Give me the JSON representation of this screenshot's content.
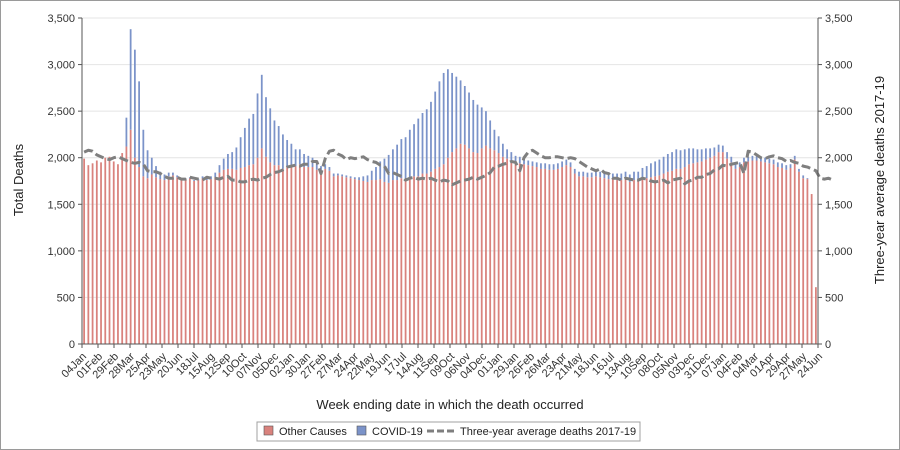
{
  "chart_data": {
    "type": "bar",
    "stacked": true,
    "xlabel": "Week ending date in which the death occurred",
    "ylabel": "Total Deaths",
    "y2label": "Three-year average deaths 2017-19",
    "ylim": [
      0,
      3500
    ],
    "yticks": [
      "0",
      "500",
      "1,000",
      "1,500",
      "2,000",
      "2,500",
      "3,000",
      "3,500"
    ],
    "ytick_values": [
      0,
      500,
      1000,
      1500,
      2000,
      2500,
      3000,
      3500
    ],
    "grid": true,
    "legend_position": "bottom-center",
    "x_tick_labels": [
      "04Jan",
      "01Feb",
      "29Feb",
      "28Mar",
      "25Apr",
      "23May",
      "20Jun",
      "18Jul",
      "15Aug",
      "12Sep",
      "10Oct",
      "07Nov",
      "05Dec",
      "02Jan",
      "30Jan",
      "27Feb",
      "27Mar",
      "24Apr",
      "22May",
      "19Jun",
      "17Jul",
      "14Aug",
      "11Sep",
      "09Oct",
      "06Nov",
      "04Dec",
      "01Jan",
      "29Jan",
      "26Feb",
      "26Mar",
      "23Apr",
      "21May",
      "18Jun",
      "16Jul",
      "13Aug",
      "10Sep",
      "08Oct",
      "05Nov",
      "03Dec",
      "31Dec",
      "07Jan",
      "04Feb",
      "04Mar",
      "01Apr",
      "29Apr",
      "27May",
      "24Jun"
    ],
    "series": [
      {
        "name": "Other Causes",
        "color": "#d9827d",
        "values": [
          1990,
          1920,
          1940,
          1970,
          1950,
          2000,
          2010,
          1960,
          1930,
          2050,
          2120,
          2300,
          2000,
          1900,
          1800,
          1780,
          1820,
          1790,
          1770,
          1760,
          1800,
          1810,
          1790,
          1760,
          1770,
          1780,
          1750,
          1760,
          1780,
          1760,
          1770,
          1790,
          1840,
          1870,
          1880,
          1880,
          1870,
          1890,
          1900,
          1920,
          1930,
          2000,
          2100,
          2010,
          1950,
          1920,
          1920,
          1880,
          1900,
          1920,
          1910,
          1930,
          1900,
          1900,
          1900,
          1870,
          1850,
          1880,
          1860,
          1800,
          1810,
          1800,
          1790,
          1780,
          1770,
          1760,
          1750,
          1740,
          1760,
          1760,
          1770,
          1740,
          1730,
          1760,
          1760,
          1780,
          1770,
          1780,
          1800,
          1800,
          1830,
          1830,
          1850,
          1880,
          1900,
          1930,
          2000,
          2060,
          2100,
          2150,
          2140,
          2100,
          2060,
          2050,
          2100,
          2130,
          2100,
          2080,
          2050,
          2010,
          1990,
          1970,
          1950,
          1940,
          1930,
          1920,
          1910,
          1900,
          1880,
          1880,
          1870,
          1870,
          1880,
          1900,
          1920,
          1900,
          1830,
          1800,
          1800,
          1790,
          1790,
          1800,
          1790,
          1780,
          1770,
          1770,
          1760,
          1760,
          1780,
          1740,
          1760,
          1750,
          1770,
          1780,
          1790,
          1800,
          1810,
          1830,
          1850,
          1860,
          1880,
          1880,
          1900,
          1930,
          1940,
          1950,
          1960,
          1980,
          2000,
          2020,
          2060,
          2060,
          1990,
          1950,
          1880,
          1900,
          1950,
          1960,
          1970,
          1970,
          1960,
          1950,
          1940,
          1930,
          1900,
          1890,
          1870,
          1890,
          1980,
          1850,
          1780,
          1770,
          1610,
          610
        ]
      },
      {
        "name": "COVID-19",
        "color": "#7b93c9",
        "values": [
          0,
          0,
          0,
          0,
          0,
          0,
          0,
          0,
          0,
          0,
          310,
          1080,
          1160,
          920,
          500,
          300,
          180,
          120,
          80,
          60,
          40,
          30,
          20,
          10,
          10,
          10,
          10,
          10,
          20,
          30,
          30,
          50,
          80,
          120,
          160,
          180,
          240,
          330,
          420,
          500,
          540,
          690,
          790,
          640,
          580,
          480,
          420,
          370,
          290,
          230,
          180,
          160,
          140,
          120,
          100,
          80,
          60,
          50,
          40,
          30,
          20,
          20,
          20,
          20,
          20,
          30,
          50,
          70,
          100,
          140,
          190,
          250,
          300,
          330,
          380,
          420,
          450,
          520,
          560,
          620,
          650,
          690,
          750,
          830,
          920,
          980,
          950,
          850,
          770,
          680,
          630,
          600,
          560,
          520,
          440,
          370,
          300,
          220,
          180,
          140,
          100,
          90,
          70,
          70,
          60,
          50,
          50,
          50,
          60,
          60,
          60,
          60,
          60,
          60,
          60,
          50,
          50,
          50,
          50,
          50,
          50,
          50,
          60,
          60,
          60,
          60,
          70,
          70,
          70,
          80,
          90,
          100,
          120,
          130,
          150,
          160,
          170,
          180,
          190,
          200,
          210,
          200,
          190,
          170,
          160,
          140,
          130,
          120,
          100,
          90,
          80,
          70,
          70,
          60,
          60,
          50,
          50,
          50,
          50,
          50,
          50,
          50,
          50,
          50,
          50,
          50,
          50,
          40,
          40,
          30,
          30,
          10
        ]
      }
    ],
    "line_series": {
      "name": "Three-year average deaths 2017-19",
      "color": "#7f7f7f",
      "values": [
        2060,
        2080,
        2070,
        2030,
        2010,
        1990,
        1980,
        2000,
        2010,
        1990,
        1970,
        1950,
        1940,
        1950,
        1930,
        1860,
        1850,
        1850,
        1830,
        1800,
        1780,
        1780,
        1790,
        1770,
        1770,
        1790,
        1780,
        1770,
        1760,
        1790,
        1780,
        1780,
        1770,
        1790,
        1800,
        1760,
        1760,
        1740,
        1740,
        1760,
        1770,
        1760,
        1780,
        1790,
        1820,
        1840,
        1850,
        1870,
        1900,
        1910,
        1920,
        1910,
        1930,
        1930,
        1960,
        1960,
        1830,
        1990,
        2070,
        2080,
        2040,
        2020,
        1980,
        2000,
        1990,
        2000,
        2010,
        1980,
        1960,
        1950,
        1920,
        1910,
        1830,
        1840,
        1820,
        1800,
        1760,
        1780,
        1790,
        1770,
        1780,
        1770,
        1780,
        1760,
        1740,
        1760,
        1750,
        1710,
        1730,
        1750,
        1760,
        1770,
        1790,
        1770,
        1790,
        1810,
        1840,
        1900,
        1910,
        1930,
        1940,
        1960,
        1950,
        1860,
        2000,
        2060,
        2080,
        2050,
        2020,
        2000,
        2000,
        2010,
        2010,
        2000,
        1990,
        2000,
        1990,
        1960,
        1930,
        1900,
        1880,
        1860,
        1880,
        1840,
        1830,
        1780,
        1780,
        1760,
        1780,
        1770,
        1760,
        1760,
        1780,
        1770,
        1750,
        1740,
        1750,
        1760,
        1730,
        1760,
        1770,
        1780,
        1720,
        1750,
        1760,
        1790,
        1790,
        1820,
        1830,
        1870,
        1880,
        1920,
        1910,
        1930,
        1940,
        1950,
        1830,
        2070,
        2060,
        2030,
        2000,
        1990,
        2010,
        2020,
        2000,
        1990,
        1960,
        1970,
        1950,
        1940,
        1910,
        1900,
        1880,
        1860,
        1780,
        1770,
        1780,
        1760
      ]
    }
  }
}
